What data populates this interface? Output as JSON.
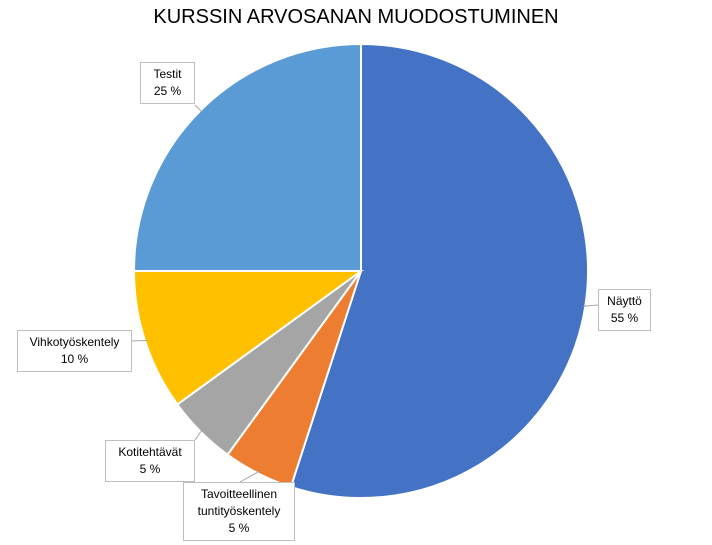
{
  "chart_data": {
    "type": "pie",
    "title": "KURSSIN ARVOSANAN MUODOSTUMINEN",
    "categories": [
      "Näyttö",
      "Tavoitteellinen tuntityöskentely",
      "Kotitehtävät",
      "Vihkotyöskentely",
      "Testit"
    ],
    "values": [
      55,
      5,
      5,
      10,
      25
    ],
    "value_labels": [
      "55 %",
      "5 %",
      "5 %",
      "10 %",
      "25 %"
    ],
    "colors": [
      "#4472c4",
      "#ed7d31",
      "#a5a5a5",
      "#ffc000",
      "#5b9bd5"
    ]
  }
}
